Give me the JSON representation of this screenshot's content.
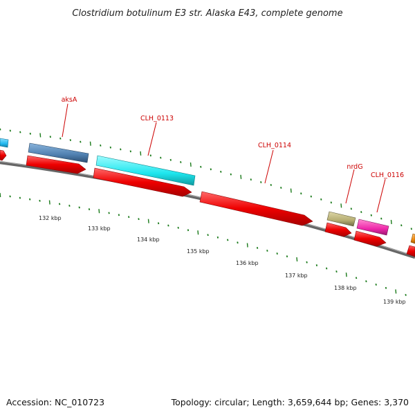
{
  "title": "Clostridium botulinum E3 str. Alaska E43, complete genome",
  "footer": {
    "accession": "Accession: NC_010723",
    "info": "Topology: circular; Length: 3,659,644 bp; Genes: 3,370"
  },
  "scale_labels": [
    "132 kbp",
    "133 kbp",
    "134 kbp",
    "135 kbp",
    "136 kbp",
    "137 kbp",
    "138 kbp",
    "139 kbp"
  ],
  "gene_labels": [
    "aksA",
    "CLH_0113",
    "CLH_0114",
    "nrdG",
    "CLH_0116"
  ],
  "colors": {
    "backbone": "#7f7f7f",
    "tick": "#1a7a1a",
    "cds": "#ee0000",
    "label": "#cc0000",
    "gene_blue": "#4f80b0",
    "gene_cyan": "#1ee6ee",
    "gene_khaki": "#b5ad72",
    "gene_magenta": "#ee28aa",
    "gene_orange": "#f08a10",
    "gene_skyblue": "#20b8f0"
  }
}
